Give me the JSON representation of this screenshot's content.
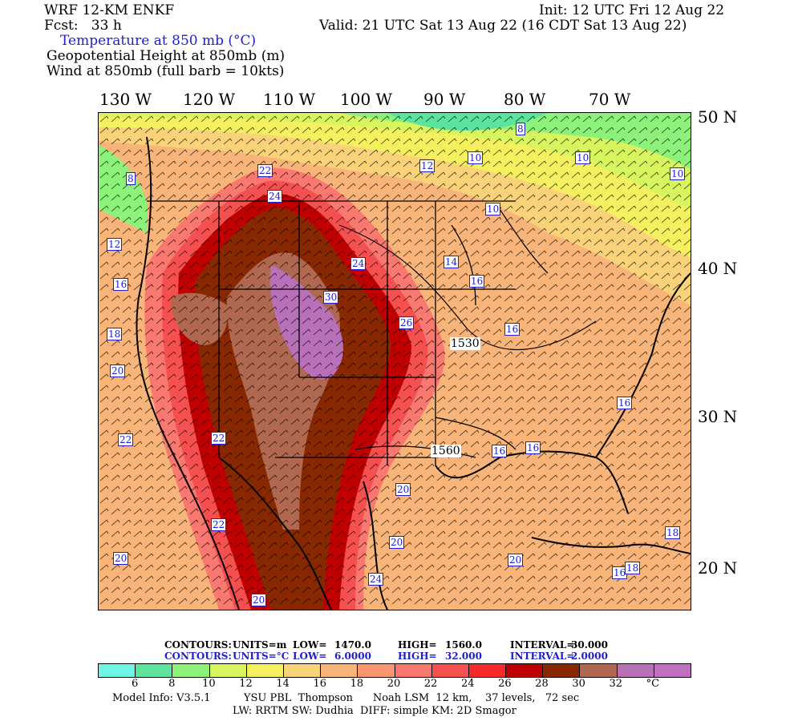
{
  "header": {
    "model": "WRF 12-KM ENKF",
    "fcst": "Fcst:   33 h",
    "field1": "Temperature at 850 mb (°C)",
    "field2": "Geopotential Height at 850mb (m)",
    "field3": "Wind at 850mb (full barb = 10kts)",
    "init": "Init: 12 UTC Fri 12 Aug 22",
    "valid": "Valid: 21 UTC Sat 13 Aug 22 (16 CDT Sat 13 Aug 22)"
  },
  "axes": {
    "lon_labels": [
      "130 W",
      "120 W",
      "110 W",
      "100 W",
      "90 W",
      "80 W",
      "70 W"
    ],
    "lat_labels": [
      "50 N",
      "40 N",
      "30 N",
      "20 N"
    ]
  },
  "map": {
    "height_labels": [
      "1530",
      "1560"
    ],
    "temp_labels": [
      "8",
      "8",
      "10",
      "10",
      "10",
      "10",
      "12",
      "12",
      "14",
      "16",
      "16",
      "16",
      "16",
      "16",
      "16",
      "16",
      "18",
      "18",
      "18",
      "18",
      "18",
      "20",
      "20",
      "20",
      "20",
      "20",
      "20",
      "22",
      "22",
      "22",
      "22",
      "24",
      "24",
      "24",
      "26",
      "30",
      "16"
    ]
  },
  "contour_info": {
    "height": {
      "label": "CONTOURS:",
      "units": "UNITS=m",
      "low": "LOW=",
      "low_v": "1470.0",
      "high": "HIGH=",
      "high_v": "1560.0",
      "interval": "INTERVAL=",
      "interval_v": "30.000"
    },
    "temp": {
      "label": "CONTOURS:",
      "units": "UNITS=°C",
      "low": "LOW=",
      "low_v": "6.0000",
      "high": "HIGH=",
      "high_v": "32.000",
      "interval": "INTERVAL=",
      "interval_v": "2.0000"
    }
  },
  "colorbar": {
    "colors": [
      "#6ff5e6",
      "#5ee39e",
      "#8cf27a",
      "#d7f55f",
      "#f5f05f",
      "#f9d27a",
      "#f9b47a",
      "#f99670",
      "#f97870",
      "#f55050",
      "#f52a2a",
      "#c00000",
      "#882800",
      "#b06850",
      "#b870b8",
      "#c070c0"
    ],
    "ticks": [
      "6",
      "8",
      "10",
      "12",
      "14",
      "16",
      "18",
      "20",
      "22",
      "24",
      "26",
      "28",
      "30",
      "32",
      "°C"
    ]
  },
  "footer": {
    "line1": "Model Info: V3.5.1          YSU PBL  Thompson      Noah LSM  12 km,    37 levels,   72 sec",
    "line2": "LW: RRTM SW: Dudhia  DIFF: simple KM: 2D Smagor"
  }
}
